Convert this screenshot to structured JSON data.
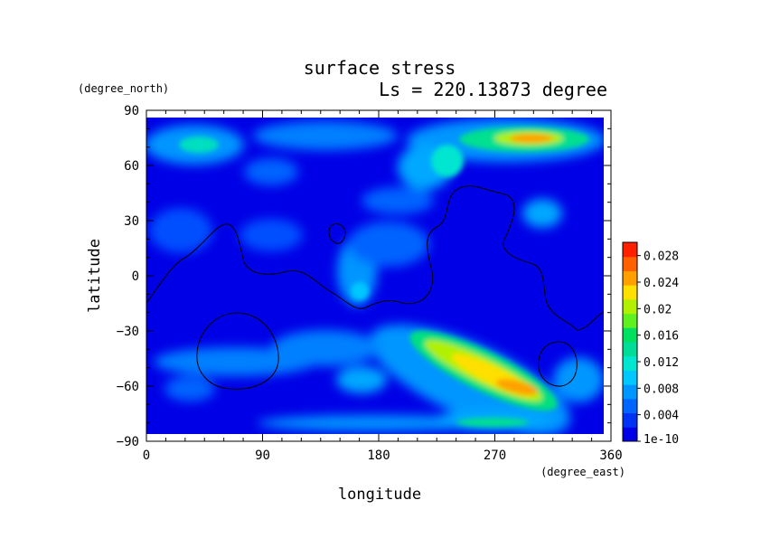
{
  "chart_data": {
    "type": "heatmap",
    "title": "surface stress",
    "subtitle": "Ls = 220.13873 degree",
    "xlabel": "longitude",
    "ylabel": "latitude",
    "xunit": "(degree_east)",
    "yunit": "(degree_north)",
    "xlim": [
      0,
      360
    ],
    "ylim": [
      -90,
      90
    ],
    "xticks": [
      0,
      90,
      180,
      270,
      360
    ],
    "yticks": [
      90,
      60,
      30,
      0,
      -30,
      -60,
      -90
    ],
    "colorbar": {
      "range": [
        0,
        0.03
      ],
      "tick_labels": [
        "0.028",
        "0.024",
        "0.02",
        "0.016",
        "0.012",
        "0.008",
        "0.004",
        "1e-10"
      ],
      "tick_values": [
        0.028,
        0.024,
        0.02,
        0.016,
        0.012,
        0.008,
        0.004,
        0
      ],
      "colors": [
        "#0000e6",
        "#0032f5",
        "#0064ff",
        "#0096ff",
        "#00c8ff",
        "#00e6d0",
        "#00dd99",
        "#00e060",
        "#60f020",
        "#b0f000",
        "#ffe000",
        "#ffa000",
        "#ff6000",
        "#ff2000"
      ]
    },
    "features": [
      {
        "lon": 290,
        "lat": 74,
        "value": 0.022
      },
      {
        "lon": 305,
        "lat": 72,
        "value": 0.018
      },
      {
        "lon": 280,
        "lat": -58,
        "value": 0.024
      },
      {
        "lon": 250,
        "lat": -50,
        "value": 0.018
      },
      {
        "lon": 225,
        "lat": -35,
        "value": 0.014
      },
      {
        "lon": 255,
        "lat": -80,
        "value": 0.012
      },
      {
        "lon": 40,
        "lat": 70,
        "value": 0.012
      },
      {
        "lon": 225,
        "lat": 65,
        "value": 0.012
      },
      {
        "lon": 170,
        "lat": -5,
        "value": 0.009
      }
    ]
  }
}
